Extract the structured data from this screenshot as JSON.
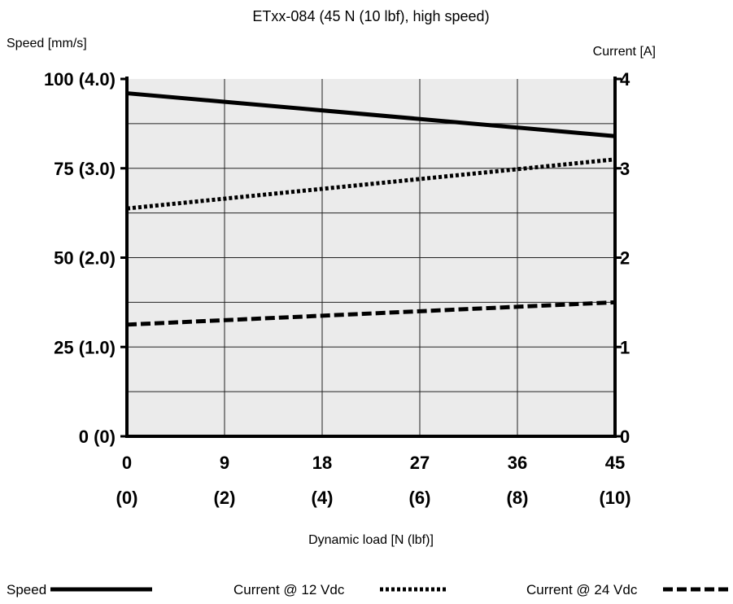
{
  "chart_data": {
    "type": "line",
    "title": "ETxx-084 (45 N (10 lbf), high speed)",
    "xlabel": "Dynamic load [N (lbf)]",
    "ylabel_left": "Speed [mm/s]",
    "ylabel_right": "Current [A]",
    "x_ticks": [
      "0",
      "9",
      "18",
      "27",
      "36",
      "45"
    ],
    "x_ticks_secondary": [
      "(0)",
      "(2)",
      "(4)",
      "(6)",
      "(8)",
      "(10)"
    ],
    "y_left_ticks": [
      "0 (0)",
      "25 (1.0)",
      "50 (2.0)",
      "75 (3.0)",
      "100 (4.0)"
    ],
    "y_right_ticks": [
      "0",
      "1",
      "2",
      "3",
      "4"
    ],
    "xlim": [
      0,
      45
    ],
    "ylim_left": [
      0,
      100
    ],
    "ylim_right": [
      0,
      4
    ],
    "grid": true,
    "plot_background": "#ebebeb",
    "series": [
      {
        "name": "Speed",
        "axis": "left",
        "style": "solid",
        "x": [
          0,
          45
        ],
        "y": [
          96,
          84
        ]
      },
      {
        "name": "Current @ 12 Vdc",
        "axis": "right",
        "style": "dotted",
        "x": [
          0,
          45
        ],
        "y": [
          2.55,
          3.1
        ]
      },
      {
        "name": "Current @ 24 Vdc",
        "axis": "right",
        "style": "dashed",
        "x": [
          0,
          45
        ],
        "y": [
          1.25,
          1.5
        ]
      }
    ],
    "legend": [
      {
        "label": "Speed",
        "style": "solid"
      },
      {
        "label": "Current @ 12 Vdc",
        "style": "dotted"
      },
      {
        "label": "Current @ 24 Vdc",
        "style": "dashed"
      }
    ],
    "legend_position": "bottom"
  }
}
